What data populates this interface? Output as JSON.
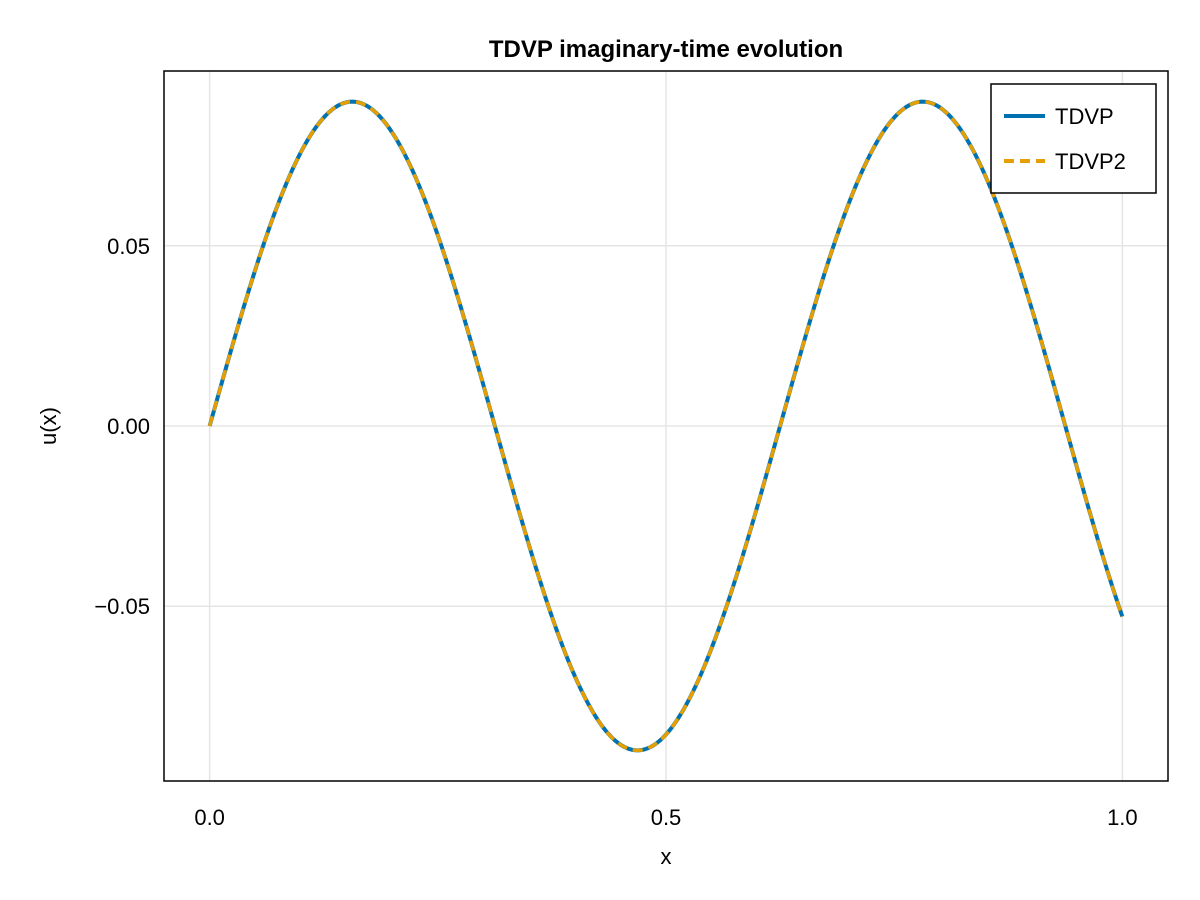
{
  "chart_data": {
    "type": "line",
    "title": "TDVP imaginary-time evolution",
    "xlabel": "x",
    "ylabel": "u(x)",
    "xlim": [
      -0.05,
      1.05
    ],
    "ylim": [
      -0.0985,
      0.0985
    ],
    "xticks": [
      0.0,
      0.5,
      1.0
    ],
    "xtick_labels": [
      "0.0",
      "0.5",
      "1.0"
    ],
    "yticks": [
      -0.05,
      0.0,
      0.05
    ],
    "ytick_labels": [
      "−0.05",
      "0.00",
      "0.05"
    ],
    "grid": true,
    "legend_position": "top-right",
    "function": "0.09 * sin(3.2 * pi * x)",
    "x": [
      0.0,
      0.025,
      0.05,
      0.075,
      0.1,
      0.125,
      0.15,
      0.175,
      0.2,
      0.225,
      0.25,
      0.275,
      0.3,
      0.325,
      0.35,
      0.375,
      0.4,
      0.425,
      0.45,
      0.475,
      0.5,
      0.525,
      0.55,
      0.575,
      0.6,
      0.625,
      0.65,
      0.675,
      0.7,
      0.725,
      0.75,
      0.775,
      0.8,
      0.825,
      0.85,
      0.875,
      0.9,
      0.925,
      0.95,
      0.975,
      1.0
    ],
    "series": [
      {
        "name": "TDVP",
        "color": "#0072B2",
        "style": "solid",
        "values": [
          0.0,
          0.0223,
          0.0432,
          0.0613,
          0.0755,
          0.0851,
          0.0896,
          0.0886,
          0.0823,
          0.0709,
          0.0556,
          0.037,
          0.0166,
          -0.0046,
          -0.0252,
          -0.0441,
          -0.0606,
          -0.0756,
          -0.0845,
          -0.0889,
          -0.0855,
          -0.077,
          -0.0633,
          -0.0462,
          -0.0259,
          -0.0044,
          0.0166,
          0.037,
          0.0556,
          0.0709,
          0.0823,
          0.0886,
          0.0896,
          0.0851,
          0.0755,
          0.0613,
          0.0432,
          0.0223,
          0.0,
          -0.017,
          -0.0388
        ]
      },
      {
        "name": "TDVP2",
        "color": "#E69F00",
        "style": "dashed",
        "values": [
          0.0,
          0.0223,
          0.0432,
          0.0613,
          0.0755,
          0.0851,
          0.0896,
          0.0886,
          0.0823,
          0.0709,
          0.0556,
          0.037,
          0.0166,
          -0.0046,
          -0.0252,
          -0.0441,
          -0.0606,
          -0.0756,
          -0.0845,
          -0.0889,
          -0.0855,
          -0.077,
          -0.0633,
          -0.0462,
          -0.0259,
          -0.0044,
          0.0166,
          0.037,
          0.0556,
          0.0709,
          0.0823,
          0.0886,
          0.0896,
          0.0851,
          0.0755,
          0.0613,
          0.0432,
          0.0223,
          0.0,
          -0.017,
          -0.0388
        ]
      }
    ]
  },
  "colors": {
    "grid": "#e5e5e5",
    "axis": "#000000",
    "background": "#ffffff"
  }
}
